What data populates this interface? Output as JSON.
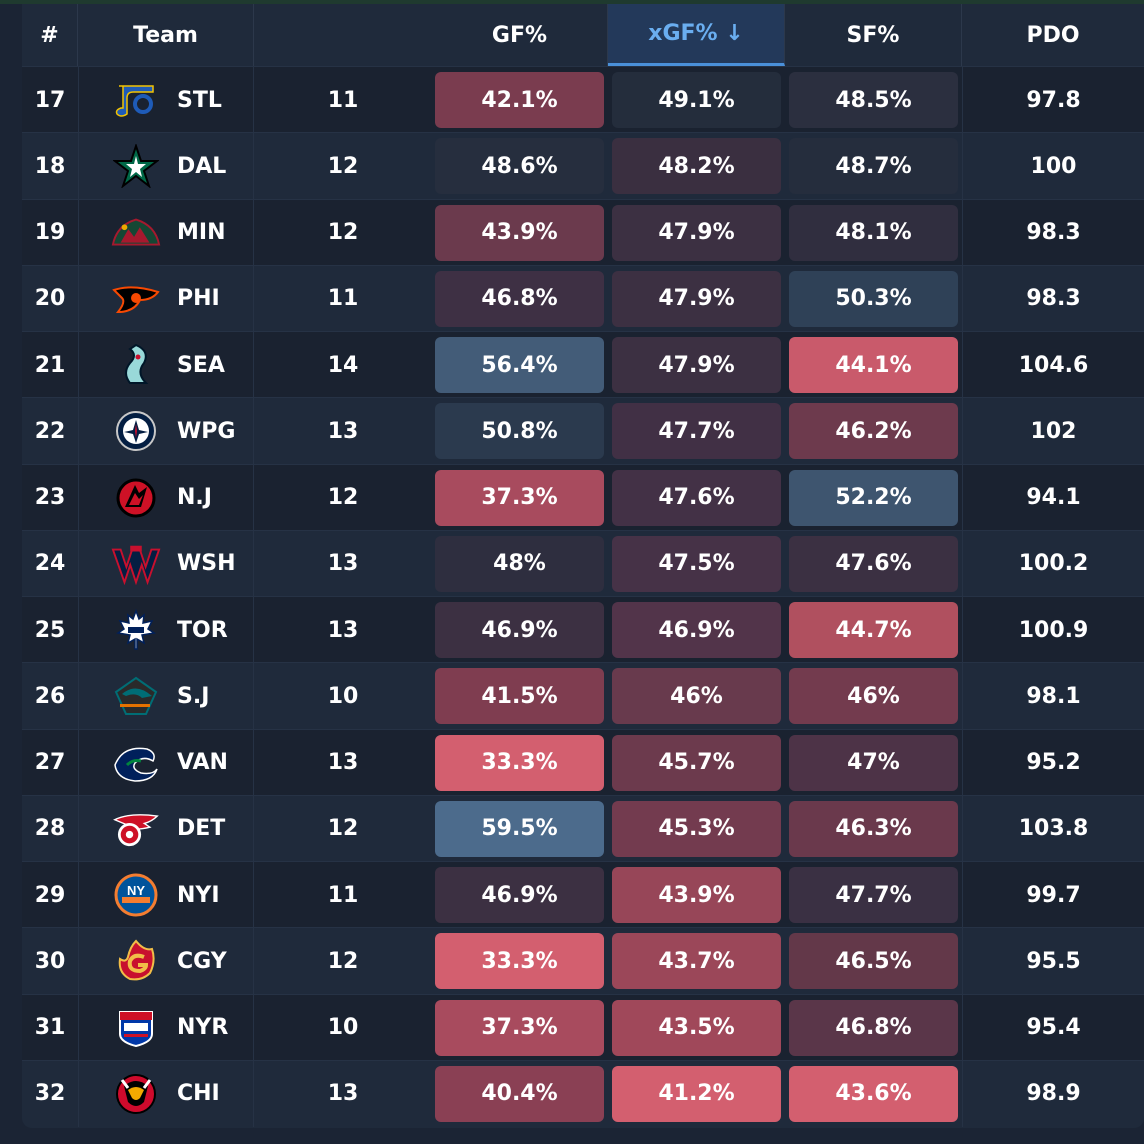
{
  "header": {
    "rank": "#",
    "team": "Team",
    "gp": "",
    "gf": "GF%",
    "xgf": "xGF% ↓",
    "sf": "SF%",
    "pdo": "PDO"
  },
  "rows": [
    {
      "rank": "17",
      "abbr": "STL",
      "gp": "11",
      "gf": "42.1%",
      "xgf": "49.1%",
      "sf": "48.5%",
      "pdo": "97.8",
      "logo": "blues-note-icon",
      "gf_color": "#7a3c4f",
      "xgf_color": "#242d3c",
      "sf_color": "#2b2f3f"
    },
    {
      "rank": "18",
      "abbr": "DAL",
      "gp": "12",
      "gf": "48.6%",
      "xgf": "48.2%",
      "sf": "48.7%",
      "pdo": "100",
      "logo": "stars-icon",
      "gf_color": "#262e3e",
      "xgf_color": "#3a2f40",
      "sf_color": "#252d3d"
    },
    {
      "rank": "19",
      "abbr": "MIN",
      "gp": "12",
      "gf": "43.9%",
      "xgf": "47.9%",
      "sf": "48.1%",
      "pdo": "98.3",
      "logo": "wild-icon",
      "gf_color": "#6b3a4d",
      "xgf_color": "#3c3042",
      "sf_color": "#302e3f"
    },
    {
      "rank": "20",
      "abbr": "PHI",
      "gp": "11",
      "gf": "46.8%",
      "xgf": "47.9%",
      "sf": "50.3%",
      "pdo": "98.3",
      "logo": "flyers-icon",
      "gf_color": "#3e3044",
      "xgf_color": "#3c3042",
      "sf_color": "#2f4157"
    },
    {
      "rank": "21",
      "abbr": "SEA",
      "gp": "14",
      "gf": "56.4%",
      "xgf": "47.9%",
      "sf": "44.1%",
      "pdo": "104.6",
      "logo": "kraken-icon",
      "gf_color": "#435c78",
      "xgf_color": "#3c3042",
      "sf_color": "#c95a6b"
    },
    {
      "rank": "22",
      "abbr": "WPG",
      "gp": "13",
      "gf": "50.8%",
      "xgf": "47.7%",
      "sf": "46.2%",
      "pdo": "102",
      "logo": "jets-icon",
      "gf_color": "#2b3a4e",
      "xgf_color": "#413045",
      "sf_color": "#6d3a4d"
    },
    {
      "rank": "23",
      "abbr": "N.J",
      "gp": "12",
      "gf": "37.3%",
      "xgf": "47.6%",
      "sf": "52.2%",
      "pdo": "94.1",
      "logo": "devils-icon",
      "gf_color": "#a84b5e",
      "xgf_color": "#433146",
      "sf_color": "#3e556f"
    },
    {
      "rank": "24",
      "abbr": "WSH",
      "gp": "13",
      "gf": "48%",
      "xgf": "47.5%",
      "sf": "47.6%",
      "pdo": "100.2",
      "logo": "capitals-icon",
      "gf_color": "#2e2e3f",
      "xgf_color": "#463247",
      "sf_color": "#3b3042"
    },
    {
      "rank": "25",
      "abbr": "TOR",
      "gp": "13",
      "gf": "46.9%",
      "xgf": "46.9%",
      "sf": "44.7%",
      "pdo": "100.9",
      "logo": "maple-leaf-icon",
      "gf_color": "#3c3042",
      "xgf_color": "#52344a",
      "sf_color": "#b0505f"
    },
    {
      "rank": "26",
      "abbr": "S.J",
      "gp": "10",
      "gf": "41.5%",
      "xgf": "46%",
      "sf": "46%",
      "pdo": "98.1",
      "logo": "sharks-icon",
      "gf_color": "#7f3d50",
      "xgf_color": "#683a4d",
      "sf_color": "#733b4e"
    },
    {
      "rank": "27",
      "abbr": "VAN",
      "gp": "13",
      "gf": "33.3%",
      "xgf": "45.7%",
      "sf": "47%",
      "pdo": "95.2",
      "logo": "canucks-icon",
      "gf_color": "#d35f6f",
      "xgf_color": "#6c3a4d",
      "sf_color": "#4d3347"
    },
    {
      "rank": "28",
      "abbr": "DET",
      "gp": "12",
      "gf": "59.5%",
      "xgf": "45.3%",
      "sf": "46.3%",
      "pdo": "103.8",
      "logo": "red-wings-icon",
      "gf_color": "#4c6b8c",
      "xgf_color": "#733b4f",
      "sf_color": "#6a394c"
    },
    {
      "rank": "29",
      "abbr": "NYI",
      "gp": "11",
      "gf": "46.9%",
      "xgf": "43.9%",
      "sf": "47.7%",
      "pdo": "99.7",
      "logo": "islanders-icon",
      "gf_color": "#3c3042",
      "xgf_color": "#974658",
      "sf_color": "#3a3043"
    },
    {
      "rank": "30",
      "abbr": "CGY",
      "gp": "12",
      "gf": "33.3%",
      "xgf": "43.7%",
      "sf": "46.5%",
      "pdo": "95.5",
      "logo": "flames-icon",
      "gf_color": "#d35f6f",
      "xgf_color": "#9b4759",
      "sf_color": "#633849"
    },
    {
      "rank": "31",
      "abbr": "NYR",
      "gp": "10",
      "gf": "37.3%",
      "xgf": "43.5%",
      "sf": "46.8%",
      "pdo": "95.4",
      "logo": "rangers-icon",
      "gf_color": "#a84b5e",
      "xgf_color": "#a0485a",
      "sf_color": "#5a3649"
    },
    {
      "rank": "32",
      "abbr": "CHI",
      "gp": "13",
      "gf": "40.4%",
      "xgf": "41.2%",
      "sf": "43.6%",
      "pdo": "98.9",
      "logo": "blackhawks-icon",
      "gf_color": "#8a4054",
      "xgf_color": "#d35f6f",
      "sf_color": "#d35f6f"
    }
  ]
}
